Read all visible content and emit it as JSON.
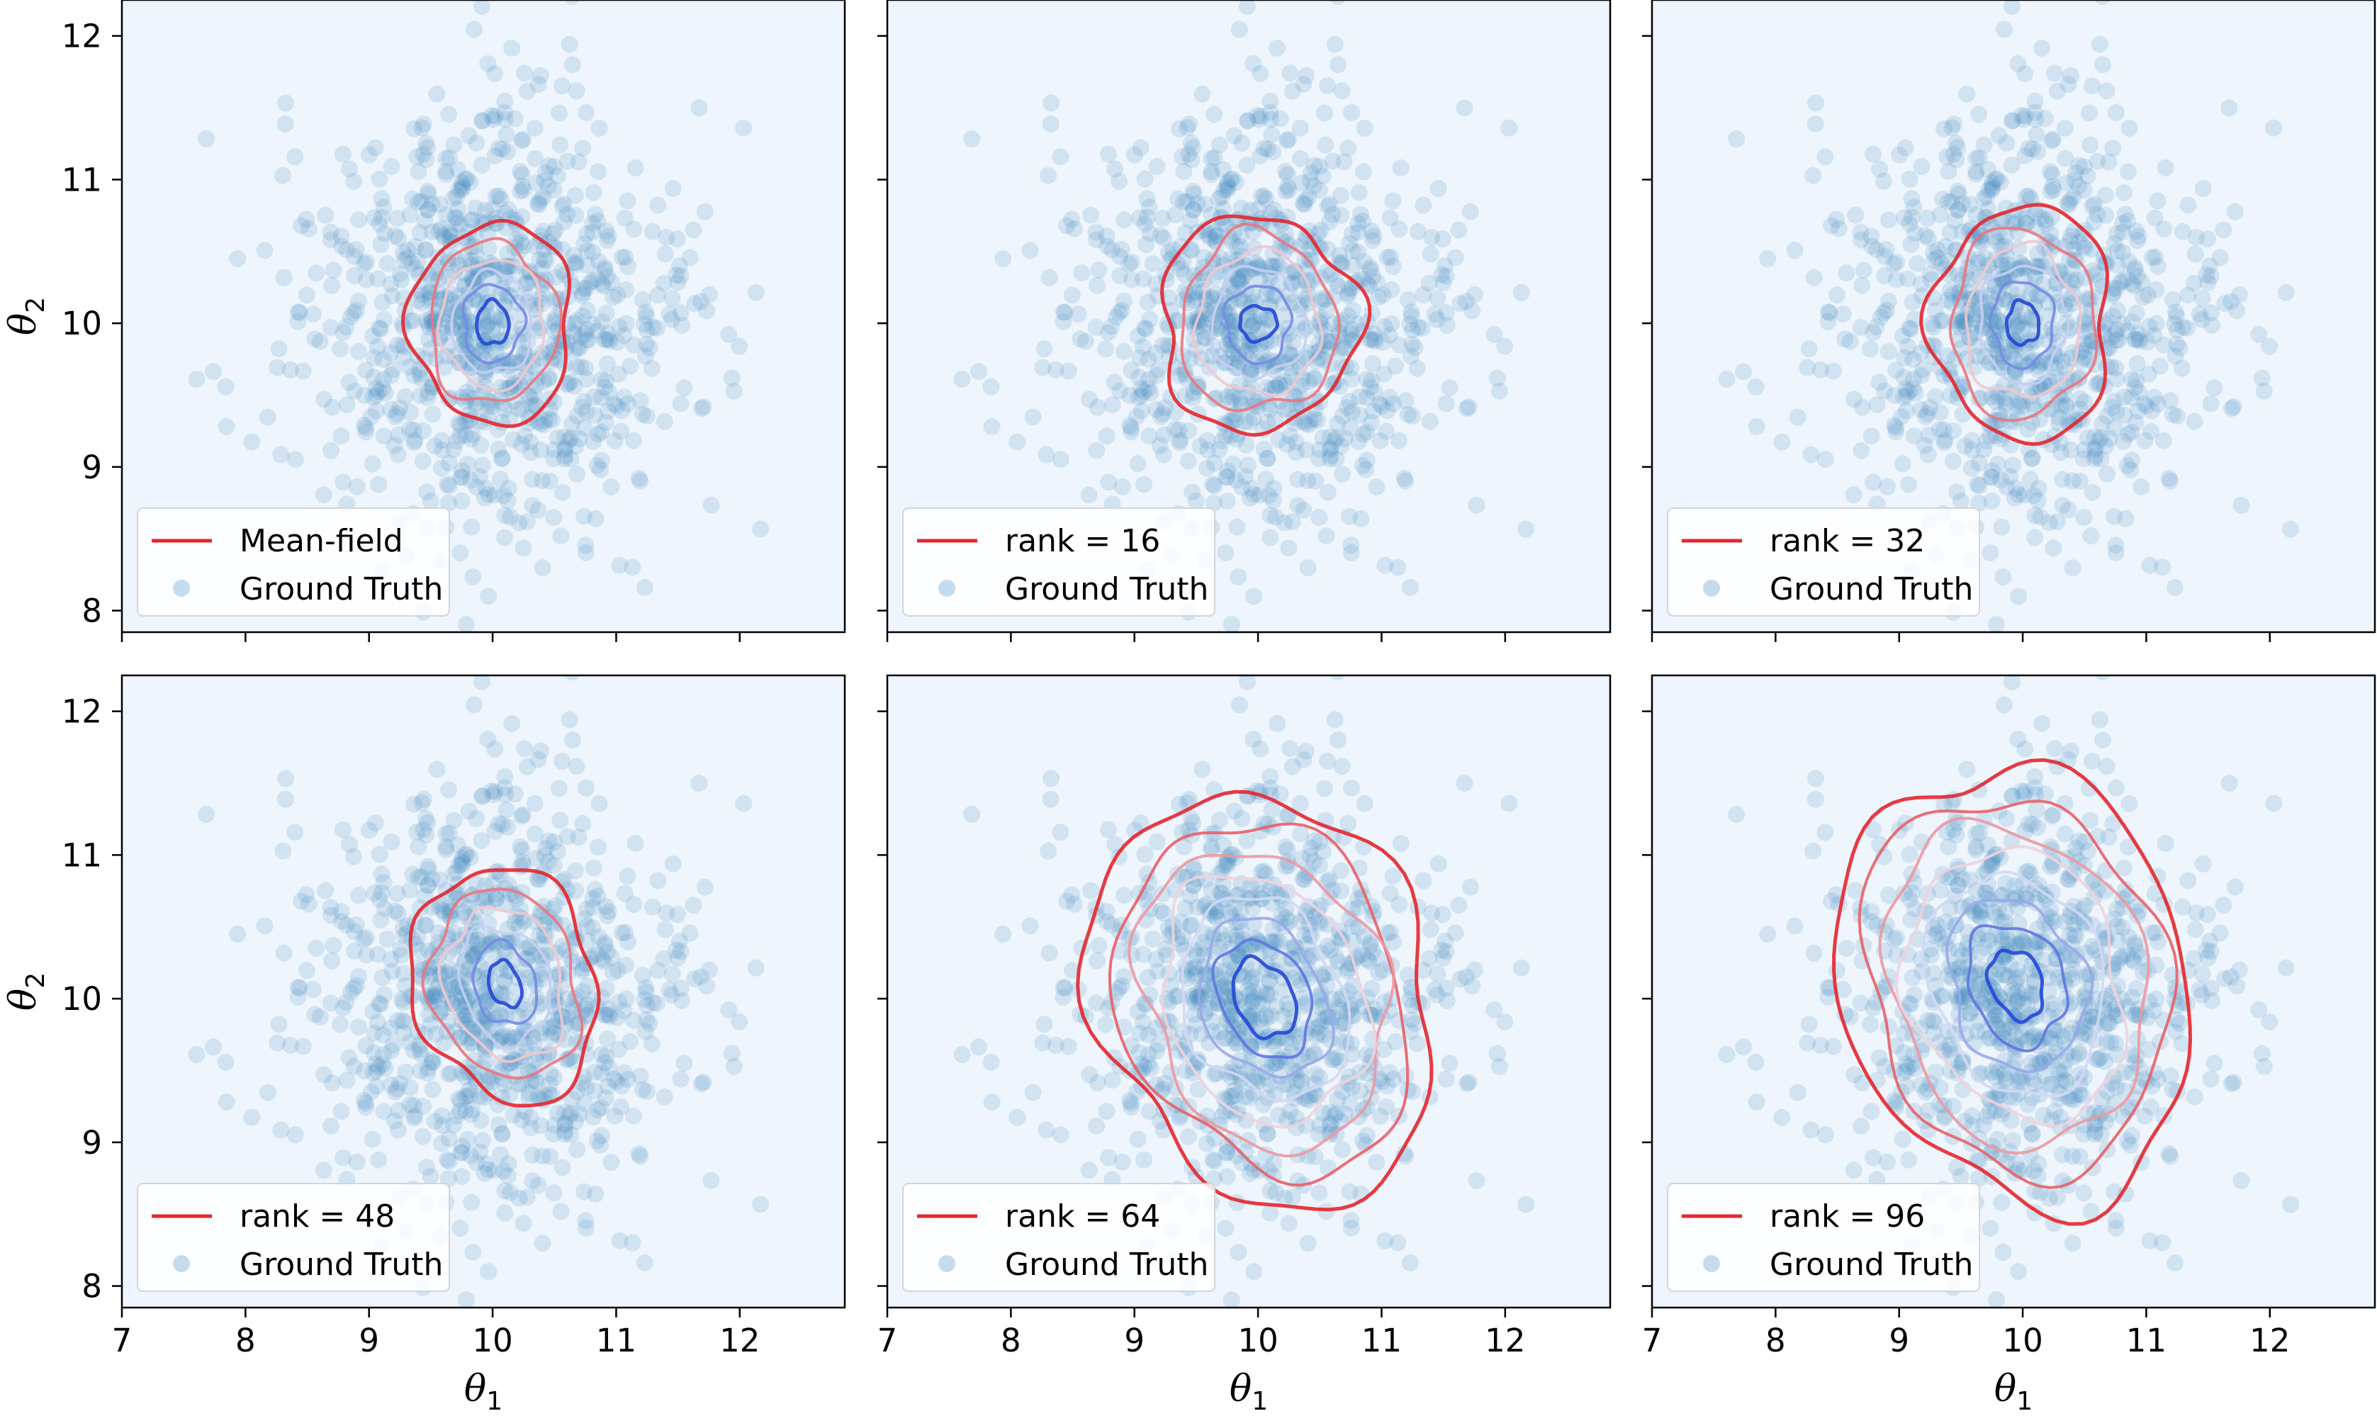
{
  "chart_data": [
    {
      "type": "scatter",
      "legend": [
        "Mean-field",
        "Ground Truth"
      ],
      "ylabel": "θ2",
      "xlabel": "",
      "xlim": [
        7,
        12.85
      ],
      "ylim": [
        7.85,
        12.25
      ],
      "x_ticks": [
        "7",
        "8",
        "9",
        "10",
        "11",
        "12"
      ],
      "y_ticks": [
        "8",
        "9",
        "10",
        "11",
        "12"
      ],
      "ground_truth_center": [
        10.0,
        10.0
      ],
      "ground_truth_std": [
        0.75,
        0.75
      ],
      "contour_center": [
        10.0,
        10.0
      ],
      "contour_radii": [
        [
          0.65,
          0.7
        ],
        [
          0.52,
          0.56
        ],
        [
          0.42,
          0.45
        ],
        [
          0.32,
          0.35
        ],
        [
          0.24,
          0.27
        ],
        [
          0.13,
          0.15
        ]
      ],
      "contour_tilt_deg": 0,
      "legend_location": "lower left"
    },
    {
      "type": "scatter",
      "legend": [
        "rank = 16",
        "Ground Truth"
      ],
      "ylabel": "",
      "xlabel": "",
      "xlim": [
        7,
        12.85
      ],
      "ylim": [
        7.85,
        12.25
      ],
      "x_ticks": [
        "7",
        "8",
        "9",
        "10",
        "11",
        "12"
      ],
      "y_ticks": [
        "8",
        "9",
        "10",
        "11",
        "12"
      ],
      "ground_truth_center": [
        10.0,
        10.0
      ],
      "ground_truth_std": [
        0.75,
        0.75
      ],
      "contour_center": [
        10.0,
        10.0
      ],
      "contour_radii": [
        [
          0.8,
          0.75
        ],
        [
          0.63,
          0.62
        ],
        [
          0.5,
          0.5
        ],
        [
          0.38,
          0.38
        ],
        [
          0.26,
          0.27
        ],
        [
          0.15,
          0.12
        ]
      ],
      "contour_tilt_deg": 0,
      "legend_location": "lower left"
    },
    {
      "type": "scatter",
      "legend": [
        "rank = 32",
        "Ground Truth"
      ],
      "ylabel": "",
      "xlabel": "",
      "xlim": [
        7,
        12.85
      ],
      "ylim": [
        7.85,
        12.25
      ],
      "x_ticks": [
        "7",
        "8",
        "9",
        "10",
        "11",
        "12"
      ],
      "y_ticks": [
        "8",
        "9",
        "10",
        "11",
        "12"
      ],
      "ground_truth_center": [
        10.0,
        10.0
      ],
      "ground_truth_std": [
        0.75,
        0.75
      ],
      "contour_center": [
        10.0,
        10.0
      ],
      "contour_radii": [
        [
          0.72,
          0.82
        ],
        [
          0.58,
          0.66
        ],
        [
          0.46,
          0.53
        ],
        [
          0.35,
          0.41
        ],
        [
          0.25,
          0.3
        ],
        [
          0.13,
          0.15
        ]
      ],
      "contour_tilt_deg": 0,
      "legend_location": "lower left"
    },
    {
      "type": "scatter",
      "legend": [
        "rank = 48",
        "Ground Truth"
      ],
      "ylabel": "θ2",
      "xlabel": "θ1",
      "xlim": [
        7,
        12.85
      ],
      "ylim": [
        7.85,
        12.25
      ],
      "x_ticks": [
        "7",
        "8",
        "9",
        "10",
        "11",
        "12"
      ],
      "y_ticks": [
        "8",
        "9",
        "10",
        "11",
        "12"
      ],
      "ground_truth_center": [
        10.0,
        10.0
      ],
      "ground_truth_std": [
        0.75,
        0.75
      ],
      "contour_center": [
        10.1,
        10.1
      ],
      "contour_radii": [
        [
          0.85,
          0.72
        ],
        [
          0.68,
          0.58
        ],
        [
          0.55,
          0.46
        ],
        [
          0.42,
          0.35
        ],
        [
          0.3,
          0.24
        ],
        [
          0.17,
          0.12
        ]
      ],
      "contour_tilt_deg": -60,
      "legend_location": "lower left"
    },
    {
      "type": "scatter",
      "legend": [
        "rank = 64",
        "Ground Truth"
      ],
      "ylabel": "",
      "xlabel": "θ1",
      "xlim": [
        7,
        12.85
      ],
      "ylim": [
        7.85,
        12.25
      ],
      "x_ticks": [
        "7",
        "8",
        "9",
        "10",
        "11",
        "12"
      ],
      "y_ticks": [
        "8",
        "9",
        "10",
        "11",
        "12"
      ],
      "ground_truth_center": [
        10.0,
        10.0
      ],
      "ground_truth_std": [
        0.75,
        0.75
      ],
      "contour_center": [
        10.05,
        10.0
      ],
      "contour_radii": [
        [
          1.55,
          1.28
        ],
        [
          1.32,
          1.08
        ],
        [
          1.12,
          0.92
        ],
        [
          0.93,
          0.76
        ],
        [
          0.76,
          0.61
        ],
        [
          0.6,
          0.47
        ],
        [
          0.45,
          0.34
        ],
        [
          0.3,
          0.22
        ]
      ],
      "contour_tilt_deg": -50,
      "legend_location": "lower left"
    },
    {
      "type": "scatter",
      "legend": [
        "rank = 96",
        "Ground Truth"
      ],
      "ylabel": "",
      "xlabel": "θ1",
      "xlim": [
        7,
        12.85
      ],
      "ylim": [
        7.85,
        12.25
      ],
      "x_ticks": [
        "7",
        "8",
        "9",
        "10",
        "11",
        "12"
      ],
      "y_ticks": [
        "8",
        "9",
        "10",
        "11",
        "12"
      ],
      "ground_truth_center": [
        10.0,
        10.0
      ],
      "ground_truth_std": [
        0.75,
        0.75
      ],
      "contour_center": [
        9.95,
        10.1
      ],
      "contour_radii": [
        [
          1.6,
          1.35
        ],
        [
          1.38,
          1.16
        ],
        [
          1.18,
          0.99
        ],
        [
          0.99,
          0.83
        ],
        [
          0.81,
          0.67
        ],
        [
          0.63,
          0.52
        ],
        [
          0.45,
          0.37
        ],
        [
          0.26,
          0.2
        ]
      ],
      "contour_tilt_deg": -55,
      "legend_location": "lower left"
    }
  ],
  "colors": {
    "axes_background": "#eef5fc",
    "scatter": "#3f86bf",
    "contour_outer": "#e4262d",
    "contour_inner": "#2547d6",
    "legend_line": "#e4262d",
    "legend_marker": "#c4dcee"
  }
}
